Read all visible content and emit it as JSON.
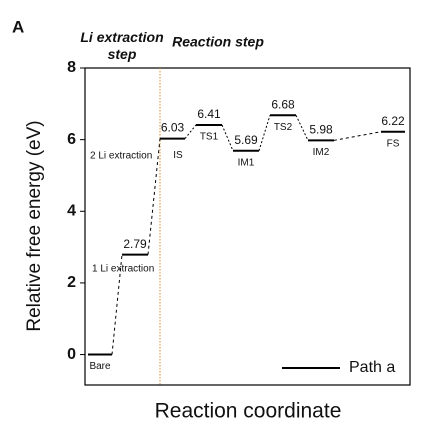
{
  "chart_data": {
    "type": "energy-profile",
    "panel_label": "A",
    "ylabel": "Relative free energy (eV)",
    "xlabel": "Reaction coordinate",
    "regions": [
      "Li extraction\nstep",
      "Reaction step"
    ],
    "region_colors": [
      "#d98c2b",
      "#4b7a2e"
    ],
    "annotation": "2 Li extraction",
    "categories": [
      "Bare",
      "1 Li extraction",
      "IS",
      "TS1",
      "IM1",
      "TS2",
      "IM2",
      "FS"
    ],
    "values": [
      0,
      2.79,
      6.03,
      6.41,
      5.69,
      6.68,
      5.98,
      6.22
    ],
    "value_labels": [
      null,
      "2.79",
      "6.03",
      "6.41",
      "5.69",
      "6.68",
      "5.98",
      "6.22"
    ],
    "series_name": "Path a",
    "color": "#000000",
    "ylim": [
      -0.85,
      8
    ],
    "yticks": [
      0,
      2,
      4,
      6,
      8
    ],
    "legend": "lower right"
  }
}
